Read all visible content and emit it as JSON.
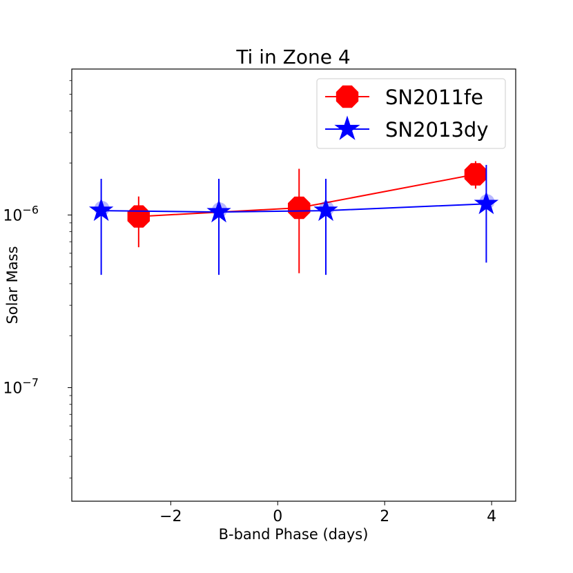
{
  "chart_data": {
    "type": "scatter",
    "title": "Ti in Zone 4",
    "xlabel": "B-band Phase (days)",
    "ylabel": "Solar Mass",
    "xlim": [
      -3.85,
      4.45
    ],
    "ylim": [
      2.2e-08,
      7e-06
    ],
    "yscale": "log",
    "x_ticks": [
      {
        "value": -2,
        "label": "−2"
      },
      {
        "value": 0,
        "label": "0"
      },
      {
        "value": 2,
        "label": "2"
      },
      {
        "value": 4,
        "label": "4"
      }
    ],
    "y_ticks": [
      {
        "value": 1e-06,
        "base": "10",
        "exp": "−6"
      },
      {
        "value": 1e-07,
        "base": "10",
        "exp": "−7"
      }
    ],
    "legend_position": "top-right",
    "series": [
      {
        "name": "SN2011fe",
        "color": "#ff0000",
        "marker": "octagon",
        "x": [
          -2.6,
          0.4,
          3.7
        ],
        "y": [
          9.8e-07,
          1.1e-06,
          1.72e-06
        ],
        "yerr_low": [
          6.5e-07,
          4.6e-07,
          1.42e-06
        ],
        "yerr_high": [
          1.28e-06,
          1.85e-06,
          2.05e-06
        ]
      },
      {
        "name": "SN2013dy",
        "color": "#0000ff",
        "marker": "star",
        "x": [
          -3.3,
          -1.1,
          0.9,
          3.9
        ],
        "y": [
          1.06e-06,
          1.04e-06,
          1.06e-06,
          1.16e-06
        ],
        "yerr_low": [
          4.5e-07,
          4.5e-07,
          4.5e-07,
          5.3e-07
        ],
        "yerr_high": [
          1.62e-06,
          1.62e-06,
          1.62e-06,
          1.95e-06
        ]
      }
    ]
  }
}
